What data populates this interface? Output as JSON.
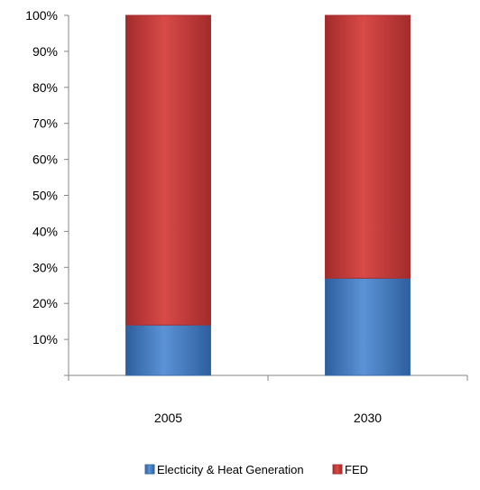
{
  "chart_data": {
    "type": "bar",
    "stacked": true,
    "percent_stacked": true,
    "categories": [
      "2005",
      "2030"
    ],
    "series": [
      {
        "name": "Electicity & Heat Generation",
        "values": [
          14,
          27
        ],
        "color": "#4a7ebb"
      },
      {
        "name": "FED",
        "values": [
          86,
          73
        ],
        "color": "#c0393b"
      }
    ],
    "ylim": [
      0,
      100
    ],
    "yticks": [
      "10%",
      "20%",
      "30%",
      "40%",
      "50%",
      "60%",
      "70%",
      "80%",
      "90%",
      "100%"
    ],
    "grid": false,
    "legend": "bottom"
  }
}
